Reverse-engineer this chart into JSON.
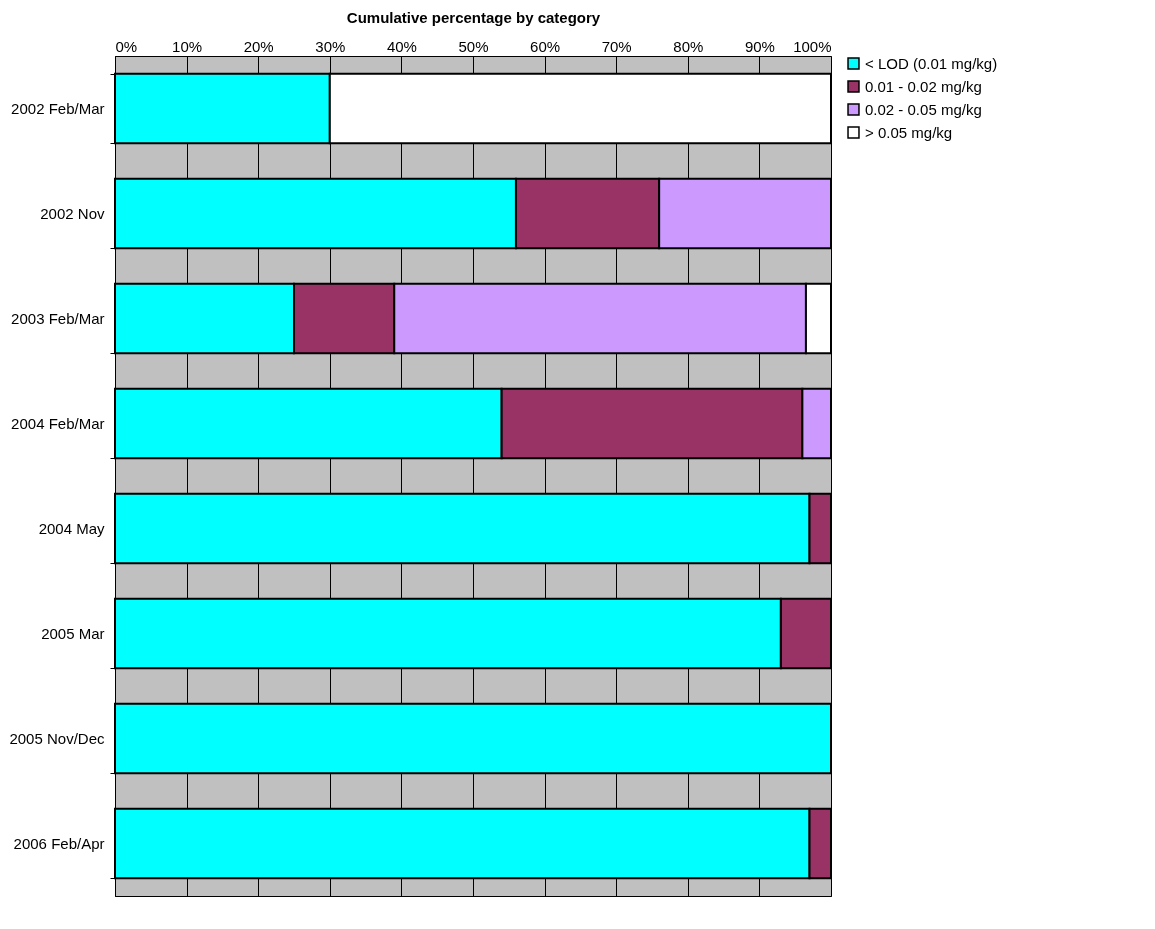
{
  "chart_data": {
    "type": "bar",
    "orientation": "horizontal",
    "stacked": true,
    "xlabel": "Cumulative percentage by category",
    "categories": [
      "2002 Feb/Mar",
      "2002 Nov",
      "2003 Feb/Mar",
      "2004 Feb/Mar",
      "2004 May",
      "2005 Mar",
      "2005 Nov/Dec",
      "2006 Feb/Apr"
    ],
    "series": [
      {
        "name": "< LOD (0.01 mg/kg)",
        "color": "#00ffff",
        "values": [
          30,
          56,
          25,
          54,
          97,
          93,
          100,
          97
        ]
      },
      {
        "name": "0.01 - 0.02 mg/kg",
        "color": "#993366",
        "values": [
          null,
          20,
          14,
          42,
          3,
          7,
          null,
          3
        ]
      },
      {
        "name": "0.02 - 0.05 mg/kg",
        "color": "#cc99ff",
        "values": [
          null,
          24,
          57.5,
          4,
          null,
          null,
          null,
          null
        ]
      },
      {
        "name": "> 0.05 mg/kg",
        "color": "#ffffff",
        "values": [
          70,
          null,
          3.5,
          null,
          null,
          null,
          null,
          null
        ]
      }
    ],
    "xlim": [
      0,
      100
    ],
    "xticks": [
      {
        "value": 0,
        "label": "0%"
      },
      {
        "value": 10,
        "label": "10%"
      },
      {
        "value": 20,
        "label": "20%"
      },
      {
        "value": 30,
        "label": "30%"
      },
      {
        "value": 40,
        "label": "40%"
      },
      {
        "value": 50,
        "label": "50%"
      },
      {
        "value": 60,
        "label": "60%"
      },
      {
        "value": 70,
        "label": "70%"
      },
      {
        "value": 80,
        "label": "80%"
      },
      {
        "value": 90,
        "label": "90%"
      },
      {
        "value": 100,
        "label": "100%"
      }
    ],
    "grid": "x",
    "legend": "right"
  }
}
